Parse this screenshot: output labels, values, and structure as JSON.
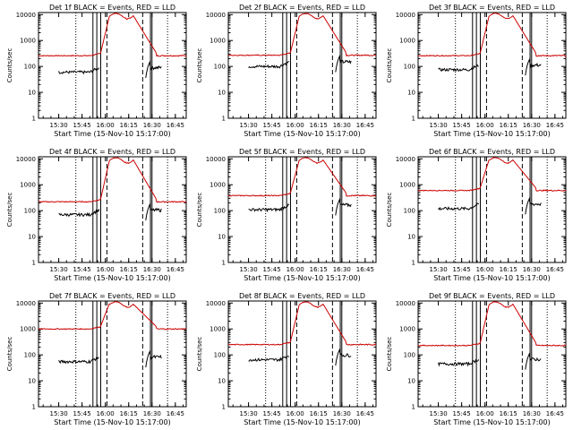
{
  "figure": {
    "start_time_label": "Start Time (15-Nov-10 15:17:00)",
    "ylabel": "Counts/sec",
    "title_suffix": " BLACK = Events, RED = LLD"
  },
  "colors": {
    "events": "#000000",
    "lld": "#cc0000",
    "axes": "#000000",
    "background": "#ffffff"
  },
  "chart_data": [
    {
      "type": "line",
      "title": "Det 1f BLACK = Events, RED = LLD",
      "detector": "Det 1f",
      "xlabel": "Start Time (15-Nov-10 15:17:00)",
      "ylabel": "Counts/sec",
      "xticks": [
        "15:30",
        "15:45",
        "16:00",
        "16:15",
        "16:30",
        "16:45"
      ],
      "yscale": "log",
      "ylim": [
        1,
        12000
      ],
      "yticks": [
        "1",
        "10",
        "100",
        "1000",
        "10000"
      ],
      "xlim": [
        "15:17",
        "16:52"
      ],
      "lld_baseline": 260,
      "events_baseline": 60,
      "series": [
        {
          "name": "Events",
          "color": "#000000",
          "points": [
            [
              "15:30",
              60
            ],
            [
              "15:35",
              55
            ],
            [
              "15:40",
              62
            ],
            [
              "15:45",
              58
            ],
            [
              "15:48",
              65
            ],
            [
              "15:52",
              70
            ],
            [
              "15:55",
              120
            ]
          ]
        },
        {
          "name": "LLD",
          "color": "#cc0000",
          "points": [
            [
              "15:17",
              260
            ],
            [
              "15:25",
              265
            ],
            [
              "15:35",
              250
            ],
            [
              "15:45",
              255
            ],
            [
              "15:55",
              280
            ],
            [
              "16:00",
              2000
            ],
            [
              "16:04",
              10000
            ],
            [
              "16:10",
              11000
            ],
            [
              "16:16",
              9000
            ],
            [
              "16:22",
              4000
            ],
            [
              "16:27",
              1200
            ],
            [
              "16:32",
              400
            ],
            [
              "16:40",
              260
            ],
            [
              "16:52",
              250
            ]
          ]
        }
      ]
    },
    {
      "type": "line",
      "title": "Det 2f BLACK = Events, RED = LLD",
      "detector": "Det 2f",
      "xlabel": "Start Time (15-Nov-10 15:17:00)",
      "ylabel": "Counts/sec",
      "xticks": [
        "15:30",
        "15:45",
        "16:00",
        "16:15",
        "16:30",
        "16:45"
      ],
      "yscale": "log",
      "ylim": [
        1,
        12000
      ],
      "yticks": [
        "1",
        "10",
        "100",
        "1000",
        "10000"
      ],
      "xlim": [
        "15:17",
        "16:52"
      ],
      "lld_baseline": 270,
      "events_baseline": 100,
      "series": []
    },
    {
      "type": "line",
      "title": "Det 3f BLACK = Events, RED = LLD",
      "detector": "Det 3f",
      "xlabel": "Start Time (15-Nov-10 15:17:00)",
      "ylabel": "Counts/sec",
      "xticks": [
        "15:30",
        "15:45",
        "16:00",
        "16:15",
        "16:30",
        "16:45"
      ],
      "yscale": "log",
      "ylim": [
        1,
        12000
      ],
      "yticks": [
        "1",
        "10",
        "100",
        "1000",
        "10000"
      ],
      "xlim": [
        "15:17",
        "16:52"
      ],
      "lld_baseline": 260,
      "events_baseline": 75,
      "series": []
    },
    {
      "type": "line",
      "title": "Det 4f BLACK = Events, RED = LLD",
      "detector": "Det 4f",
      "xlabel": "Start Time (15-Nov-10 15:17:00)",
      "ylabel": "Counts/sec",
      "xticks": [
        "15:30",
        "15:45",
        "16:00",
        "16:15",
        "16:30",
        "16:45"
      ],
      "yscale": "log",
      "ylim": [
        1,
        12000
      ],
      "yticks": [
        "1",
        "10",
        "100",
        "1000",
        "10000"
      ],
      "xlim": [
        "15:17",
        "16:52"
      ],
      "lld_baseline": 220,
      "events_baseline": 70,
      "series": []
    },
    {
      "type": "line",
      "title": "Det 5f BLACK = Events, RED = LLD",
      "detector": "Det 5f",
      "xlabel": "Start Time (15-Nov-10 15:17:00)",
      "ylabel": "Counts/sec",
      "xticks": [
        "15:30",
        "15:45",
        "16:00",
        "16:15",
        "16:30",
        "16:45"
      ],
      "yscale": "log",
      "ylim": [
        1,
        12000
      ],
      "yticks": [
        "1",
        "10",
        "100",
        "1000",
        "10000"
      ],
      "xlim": [
        "15:17",
        "16:52"
      ],
      "lld_baseline": 380,
      "events_baseline": 110,
      "series": []
    },
    {
      "type": "line",
      "title": "Det 6f BLACK = Events, RED = LLD",
      "detector": "Det 6f",
      "xlabel": "Start Time (15-Nov-10 15:17:00)",
      "ylabel": "Counts/sec",
      "xticks": [
        "15:30",
        "15:45",
        "16:00",
        "16:15",
        "16:30",
        "16:45"
      ],
      "yscale": "log",
      "ylim": [
        1,
        12000
      ],
      "yticks": [
        "1",
        "10",
        "100",
        "1000",
        "10000"
      ],
      "xlim": [
        "15:17",
        "16:52"
      ],
      "lld_baseline": 600,
      "events_baseline": 120,
      "series": []
    },
    {
      "type": "line",
      "title": "Det 7f BLACK = Events, RED = LLD",
      "detector": "Det 7f",
      "xlabel": "Start Time (15-Nov-10 15:17:00)",
      "ylabel": "Counts/sec",
      "xticks": [
        "15:30",
        "15:45",
        "16:00",
        "16:15",
        "16:30",
        "16:45"
      ],
      "yscale": "log",
      "ylim": [
        1,
        12000
      ],
      "yticks": [
        "1",
        "10",
        "100",
        "1000",
        "10000"
      ],
      "xlim": [
        "15:17",
        "16:52"
      ],
      "lld_baseline": 1000,
      "events_baseline": 55,
      "series": []
    },
    {
      "type": "line",
      "title": "Det 8f BLACK = Events, RED = LLD",
      "detector": "Det 8f",
      "xlabel": "Start Time (15-Nov-10 15:17:00)",
      "ylabel": "Counts/sec",
      "xticks": [
        "15:30",
        "15:45",
        "16:00",
        "16:15",
        "16:30",
        "16:45"
      ],
      "yscale": "log",
      "ylim": [
        1,
        12000
      ],
      "yticks": [
        "1",
        "10",
        "100",
        "1000",
        "10000"
      ],
      "xlim": [
        "15:17",
        "16:52"
      ],
      "lld_baseline": 250,
      "events_baseline": 65,
      "series": []
    },
    {
      "type": "line",
      "title": "Det 9f BLACK = Events, RED = LLD",
      "detector": "Det 9f",
      "xlabel": "Start Time (15-Nov-10 15:17:00)",
      "ylabel": "Counts/sec",
      "xticks": [
        "15:30",
        "15:45",
        "16:00",
        "16:15",
        "16:30",
        "16:45"
      ],
      "yscale": "log",
      "ylim": [
        1,
        12000
      ],
      "yticks": [
        "1",
        "10",
        "100",
        "1000",
        "10000"
      ],
      "xlim": [
        "15:17",
        "16:52"
      ],
      "lld_baseline": 230,
      "events_baseline": 45,
      "series": []
    }
  ]
}
